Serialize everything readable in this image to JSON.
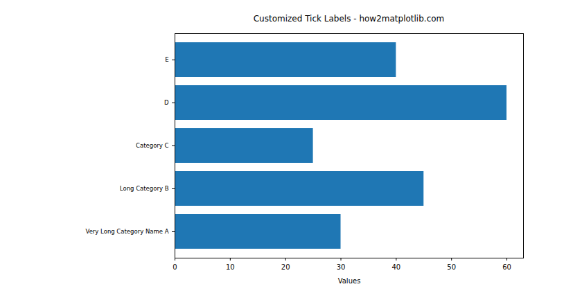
{
  "chart_data": {
    "type": "bar",
    "orientation": "horizontal",
    "title": "Customized Tick Labels - how2matplotlib.com",
    "x_label": "Values",
    "categories": [
      "Very Long Category Name A",
      "Long Category B",
      "Category C",
      "D",
      "E"
    ],
    "values": [
      30,
      45,
      25,
      60,
      40
    ],
    "color": "#1f77b4",
    "xlim": [
      0,
      63
    ],
    "xticks": [
      0,
      10,
      20,
      30,
      40,
      50,
      60
    ],
    "grid": false
  }
}
